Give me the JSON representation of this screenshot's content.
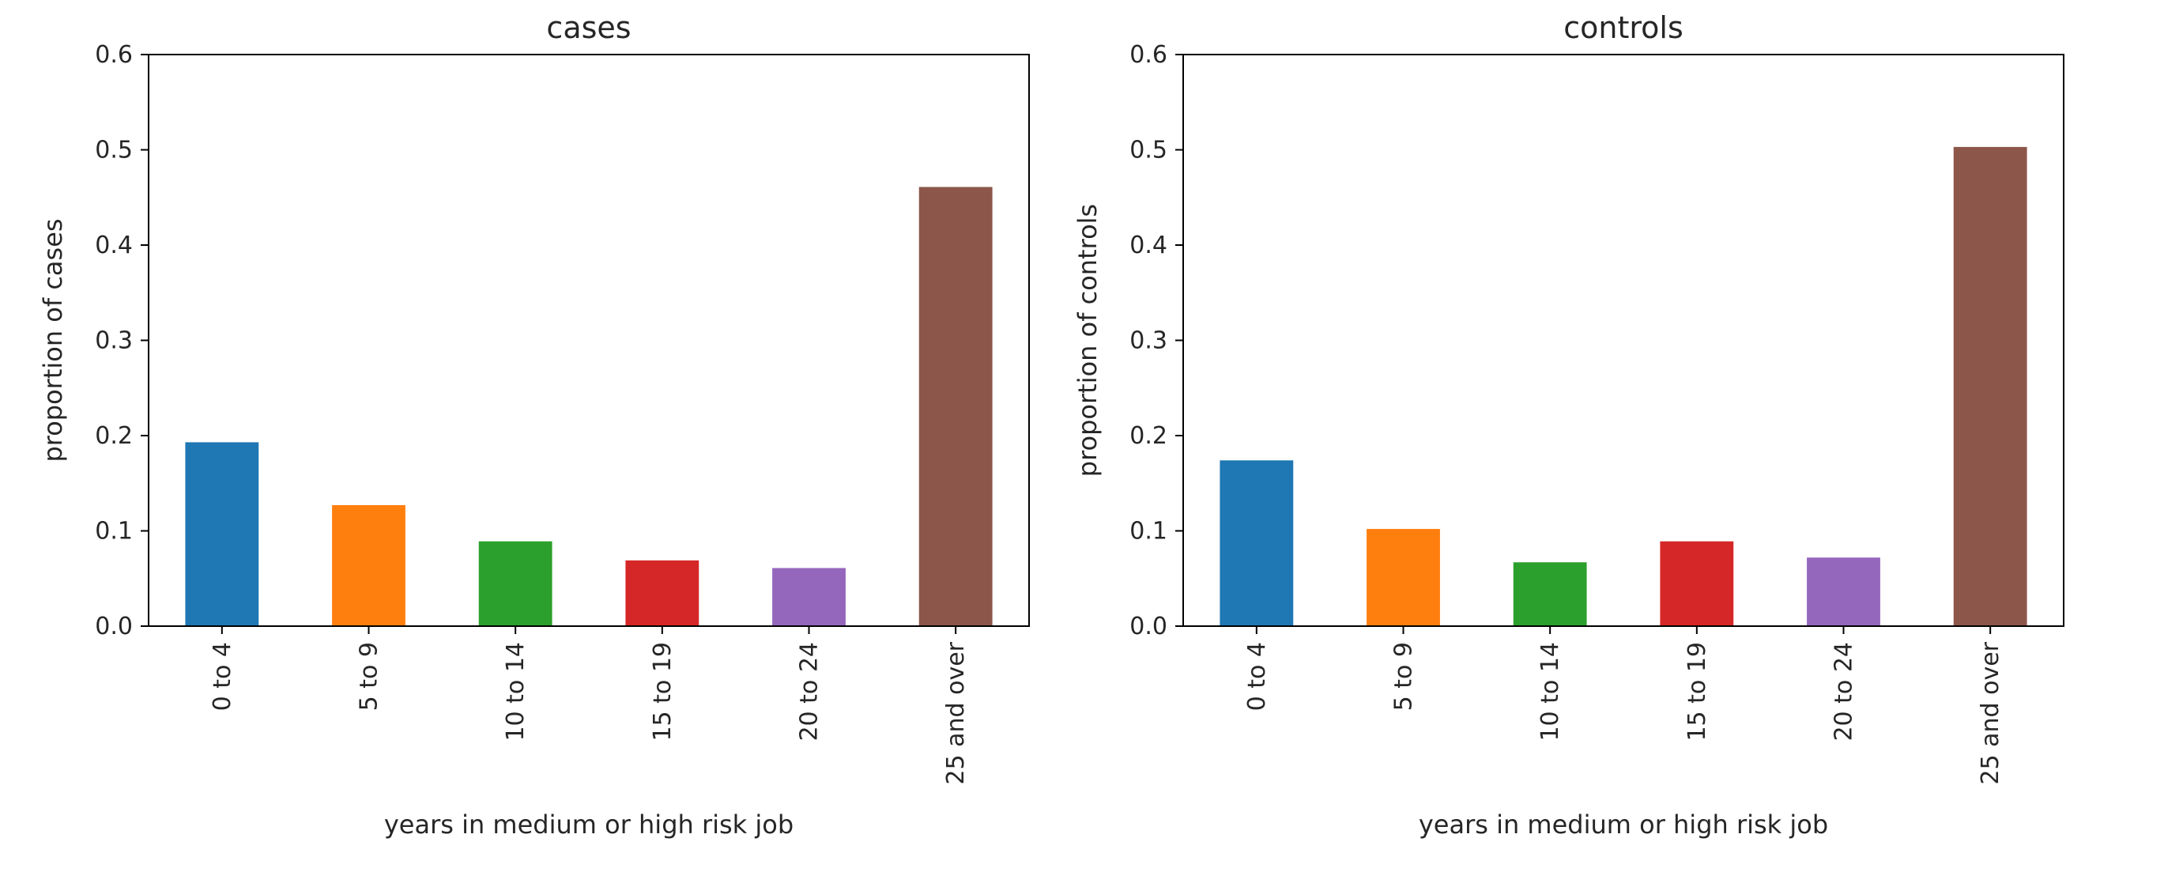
{
  "chart_data": [
    {
      "type": "bar",
      "title": "cases",
      "xlabel": "years in medium or high risk job",
      "ylabel": "proportion of cases",
      "categories": [
        "0 to 4",
        "5 to 9",
        "10 to 14",
        "15 to 19",
        "20 to 24",
        "25 and over"
      ],
      "values": [
        0.193,
        0.127,
        0.089,
        0.069,
        0.061,
        0.461
      ],
      "colors": [
        "#1f77b4",
        "#ff7f0e",
        "#2ca02c",
        "#d62728",
        "#9467bd",
        "#8c564b"
      ],
      "ylim": [
        0,
        0.6
      ],
      "yticks": [
        "0.0",
        "0.1",
        "0.2",
        "0.3",
        "0.4",
        "0.5",
        "0.6"
      ],
      "grid": false,
      "legend": false
    },
    {
      "type": "bar",
      "title": "controls",
      "xlabel": "years in medium or high risk job",
      "ylabel": "proportion of controls",
      "categories": [
        "0 to 4",
        "5 to 9",
        "10 to 14",
        "15 to 19",
        "20 to 24",
        "25 and over"
      ],
      "values": [
        0.174,
        0.102,
        0.067,
        0.089,
        0.072,
        0.503
      ],
      "colors": [
        "#1f77b4",
        "#ff7f0e",
        "#2ca02c",
        "#d62728",
        "#9467bd",
        "#8c564b"
      ],
      "ylim": [
        0,
        0.6
      ],
      "yticks": [
        "0.0",
        "0.1",
        "0.2",
        "0.3",
        "0.4",
        "0.5",
        "0.6"
      ],
      "grid": false,
      "legend": false
    }
  ]
}
